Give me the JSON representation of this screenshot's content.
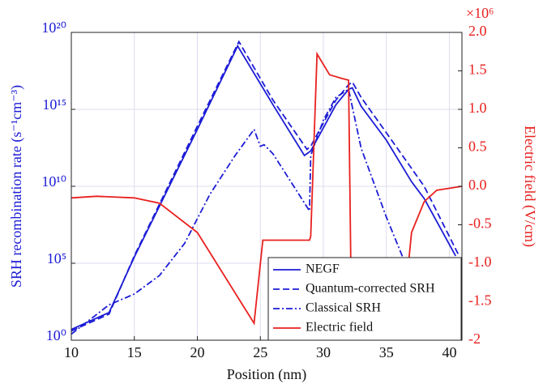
{
  "chart_data": {
    "type": "line",
    "xlabel": "Position (nm)",
    "ylabel": "SRH recombination rate (s⁻¹cm⁻³)",
    "y2label": "Electric field (V/cm)",
    "y2multiplier": "×10⁶",
    "xlim": [
      10,
      41
    ],
    "xticks": [
      10,
      15,
      20,
      25,
      30,
      35,
      40
    ],
    "ylim": [
      1,
      1e+20
    ],
    "yscale": "log",
    "yticks": [
      {
        "value": 1,
        "label": "10⁰"
      },
      {
        "value": 100000.0,
        "label": "10⁵"
      },
      {
        "value": 10000000000.0,
        "label": "10¹⁰"
      },
      {
        "value": 1000000000000000.0,
        "label": "10¹⁵"
      },
      {
        "value": 1e+20,
        "label": "10²⁰"
      }
    ],
    "y2lim": [
      -2,
      2
    ],
    "y2ticks": [
      {
        "value": -2,
        "label": "-2"
      },
      {
        "value": -1.5,
        "label": "-1.5"
      },
      {
        "value": -1,
        "label": "-1.0"
      },
      {
        "value": -0.5,
        "label": "-0.5"
      },
      {
        "value": 0,
        "label": "0.0"
      },
      {
        "value": 0.5,
        "label": "0.5"
      },
      {
        "value": 1,
        "label": "1.0"
      },
      {
        "value": 1.5,
        "label": "1.5"
      },
      {
        "value": 2,
        "label": "2.0"
      }
    ],
    "grid": true,
    "legend": "lower right",
    "series": [
      {
        "name": "NEGF",
        "color": "#1c1cd6",
        "dash": "solid",
        "x": [
          10,
          13,
          15,
          20,
          23.2,
          26,
          28.5,
          29,
          30,
          31,
          32,
          32.3,
          33,
          35,
          37,
          38,
          40.5
        ],
        "values": [
          5,
          63,
          250000.0,
          50000000000000.0,
          1.3e+19,
          2000000000000000.0,
          1000000000000.0,
          2000000000000.0,
          63000000000000.0,
          2000000000000000.0,
          2e+16,
          2.5e+16,
          1600000000000000.0,
          10000000000000.0,
          20000000000.0,
          1600000000.0,
          300000.0
        ]
      },
      {
        "name": "Quantum-corrected SRH",
        "color": "#1c1cd6",
        "dash": "dashed",
        "x": [
          10,
          13,
          15,
          20,
          23.3,
          26,
          28.7,
          29,
          30,
          31,
          32,
          32.3,
          33,
          35,
          38,
          40.7
        ],
        "values": [
          4,
          50,
          300000.0,
          80000000000000.0,
          2.5e+19,
          4000000000000000.0,
          2500000000000.0,
          4000000000000.0,
          130000000000000.0,
          4000000000000000.0,
          4e+16,
          6e+16,
          6000000000000000.0,
          30000000000000.0,
          10000000000.0,
          400000.0
        ]
      },
      {
        "name": "Classical SRH",
        "color": "#1c1cd6",
        "dash": "dashdot",
        "x": [
          10,
          13,
          15,
          17,
          19,
          21,
          23,
          24.5,
          25,
          25.3,
          26,
          28.9,
          29,
          30,
          31,
          32,
          33,
          35,
          36.5,
          37
        ],
        "values": [
          2.5,
          200,
          1000,
          16000.0,
          2000000.0,
          3000000000.0,
          1000000000000.0,
          50000000000000.0,
          4000000000000.0,
          5000000000000.0,
          1300000000000.0,
          250000000.0,
          1000000000000.0,
          200000000000000.0,
          6000000000000000.0,
          2e+16,
          3000000000000.0,
          100000000.0,
          100000.0,
          20000.0
        ]
      },
      {
        "name": "Electric field",
        "color": "#e8201e",
        "dash": "solid",
        "axis": "y2",
        "x": [
          10,
          12,
          15,
          17,
          20,
          24.5,
          25.2,
          28.9,
          29,
          29.5,
          30.5,
          31.5,
          32,
          32.2,
          32.5,
          36.5,
          36.7,
          37,
          38,
          39,
          41
        ],
        "values": [
          -0.15,
          -0.13,
          -0.15,
          -0.22,
          -0.6,
          -1.78,
          -0.7,
          -0.7,
          -0.65,
          1.72,
          1.45,
          1.4,
          1.38,
          -1.3,
          -1.9,
          -1.9,
          -1.1,
          -0.6,
          -0.2,
          -0.05,
          0
        ]
      }
    ]
  }
}
